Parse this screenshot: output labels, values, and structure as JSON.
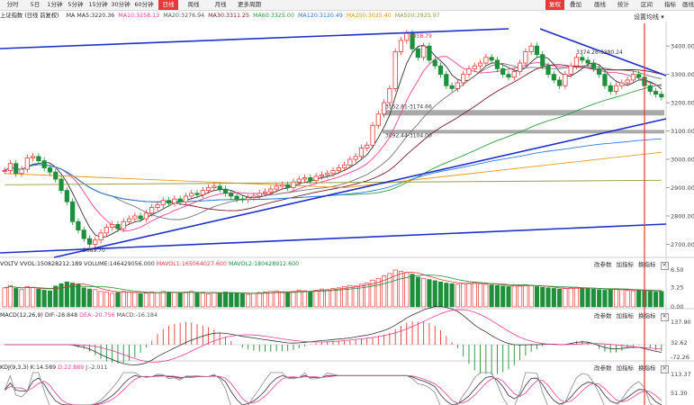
{
  "toolbar": {
    "left": [
      {
        "label": "分时"
      },
      {
        "label": "5日"
      },
      {
        "label": "1分钟"
      },
      {
        "label": "5分钟"
      },
      {
        "label": "15分钟"
      },
      {
        "label": "30分钟"
      },
      {
        "label": "60分钟"
      },
      {
        "label": "日线",
        "active": true
      },
      {
        "label": "周线"
      },
      {
        "label": "月线"
      },
      {
        "label": "更多周期"
      }
    ],
    "right": [
      {
        "label": "复权",
        "active": true
      },
      {
        "label": "叠加"
      },
      {
        "label": "画线"
      },
      {
        "label": "统计"
      },
      {
        "label": "区间"
      },
      {
        "label": "指标"
      },
      {
        "label": "画线"
      },
      {
        "label": "隐藏"
      },
      {
        "label": "关闭"
      }
    ]
  },
  "header": {
    "title": "上证指数 (日线 前复权)",
    "ma": [
      {
        "label": "MA  MA5:3220.36",
        "color": "#333333"
      },
      {
        "label": "MA10:3258.13",
        "color": "#e8409a"
      },
      {
        "label": "MA20:3276.94",
        "color": "#555555"
      },
      {
        "label": "MA30:3311.25",
        "color": "#7a1d2b"
      },
      {
        "label": "MA60:3325.00",
        "color": "#2e9f3e"
      },
      {
        "label": "MA120:3120.49",
        "color": "#2c7be5"
      },
      {
        "label": "MA250:3025.40",
        "color": "#e89b1b"
      },
      {
        "label": "MA500:2925.97",
        "color": "#9c9c4a"
      }
    ],
    "settings": "设置均线"
  },
  "price_axis": {
    "ticks": [
      "3400.00",
      "3300.00",
      "3200.00",
      "3100.00",
      "3000.00",
      "2900.00",
      "2800.00",
      "2700.00"
    ]
  },
  "annotations": {
    "high": "3458.79",
    "low": "2689.70",
    "band1": "3152.81-3174.66",
    "band2": "3092.44-3104.00",
    "peak2": "3374.26-3380.24"
  },
  "volume": {
    "title": "VOLTV  VVOL:150828212.189",
    "volume": "VOLUME:146429056.000",
    "mavol1": "MAVOL1:165064027.600",
    "mavol2": "MAVOL2:180428912.600",
    "ticks": [
      "6.50",
      "3.25",
      "0.00"
    ]
  },
  "macd": {
    "title": "MACD(12,26,9)",
    "dif": "DIF:-28.848",
    "dea": "DEA:-20.756",
    "macd": "MACD:-16.184",
    "ticks": [
      "137.90",
      "32.62",
      "-72.26"
    ]
  },
  "kdj": {
    "title": "KDJ(9,3,3)",
    "k": "K:14.589",
    "d": "D:22.889",
    "j": "J:-2.011",
    "ticks": [
      "113.37",
      "51.30"
    ]
  },
  "indicator_buttons": [
    "改参数",
    "加指标",
    "换指标"
  ],
  "colors": {
    "up": "#e63a3a",
    "down": "#1e8f3a",
    "trend": "#1d2fc8",
    "band": "#9a9a9a",
    "cursor": "#e63a3a"
  },
  "chart_data": {
    "type": "candlestick",
    "title": "上证指数 (日线 前复权)",
    "ylim": [
      2660,
      3480
    ],
    "closes": [
      2960,
      2985,
      2950,
      2965,
      3005,
      3010,
      2995,
      2970,
      2955,
      2930,
      2890,
      2850,
      2780,
      2750,
      2720,
      2700,
      2715,
      2740,
      2760,
      2770,
      2755,
      2780,
      2790,
      2800,
      2790,
      2810,
      2830,
      2840,
      2855,
      2845,
      2860,
      2850,
      2870,
      2880,
      2875,
      2890,
      2900,
      2905,
      2895,
      2880,
      2870,
      2860,
      2858,
      2865,
      2870,
      2880,
      2885,
      2895,
      2905,
      2910,
      2900,
      2920,
      2930,
      2935,
      2925,
      2940,
      2945,
      2950,
      2960,
      2970,
      2980,
      3000,
      3010,
      3040,
      3050,
      3120,
      3160,
      3200,
      3250,
      3380,
      3420,
      3445,
      3390,
      3360,
      3400,
      3350,
      3330,
      3300,
      3260,
      3250,
      3270,
      3300,
      3320,
      3330,
      3340,
      3360,
      3350,
      3320,
      3300,
      3290,
      3310,
      3340,
      3380,
      3400,
      3370,
      3330,
      3300,
      3280,
      3260,
      3300,
      3330,
      3360,
      3350,
      3340,
      3320,
      3300,
      3260,
      3240,
      3260,
      3270,
      3280,
      3300,
      3290,
      3260,
      3240,
      3230,
      3220
    ],
    "volume": [
      3.2,
      3.6,
      3.1,
      2.9,
      3.4,
      3.3,
      3.0,
      2.8,
      2.7,
      3.5,
      3.9,
      4.2,
      4.0,
      3.8,
      3.2,
      3.0,
      2.9,
      2.6,
      2.5,
      2.3,
      2.4,
      2.6,
      2.5,
      2.4,
      2.2,
      2.3,
      2.5,
      2.4,
      2.6,
      2.5,
      2.4,
      2.3,
      2.5,
      2.6,
      2.4,
      2.3,
      2.2,
      2.4,
      2.3,
      2.5,
      2.4,
      2.3,
      2.2,
      2.1,
      2.3,
      2.4,
      2.5,
      2.6,
      2.7,
      2.5,
      2.4,
      2.6,
      2.8,
      2.7,
      2.6,
      2.8,
      3.0,
      2.9,
      3.1,
      3.2,
      3.4,
      3.6,
      3.5,
      3.8,
      4.0,
      4.5,
      4.8,
      5.2,
      5.6,
      6.2,
      6.0,
      5.8,
      5.5,
      5.0,
      4.8,
      4.6,
      4.4,
      4.2,
      4.0,
      3.9,
      3.8,
      3.9,
      4.0,
      4.1,
      3.9,
      3.8,
      3.7,
      3.6,
      3.5,
      3.4,
      3.5,
      3.6,
      3.7,
      3.6,
      3.4,
      3.3,
      3.2,
      3.1,
      3.0,
      3.1,
      3.2,
      3.3,
      3.2,
      3.1,
      3.0,
      2.9,
      2.8,
      2.9,
      3.0,
      2.9,
      2.8,
      2.7,
      2.8,
      2.7,
      2.6,
      2.5,
      2.6
    ]
  }
}
